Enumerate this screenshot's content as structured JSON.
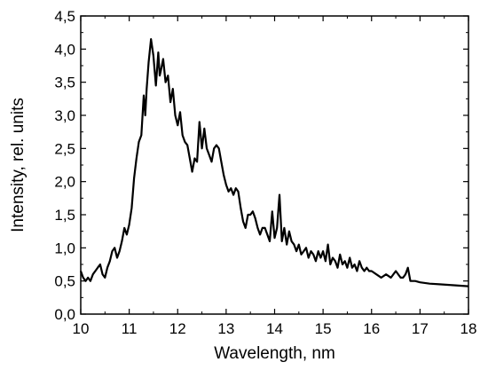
{
  "chart_data": {
    "type": "line",
    "title": "",
    "xlabel": "Wavelength, nm",
    "ylabel": "Intensity, rel. units",
    "xlim": [
      10,
      18
    ],
    "ylim": [
      0.0,
      4.5
    ],
    "x_ticks": [
      10,
      11,
      12,
      13,
      14,
      15,
      16,
      17,
      18
    ],
    "x_tick_labels": [
      "10",
      "11",
      "12",
      "13",
      "14",
      "15",
      "16",
      "17",
      "18"
    ],
    "y_ticks": [
      0.0,
      0.5,
      1.0,
      1.5,
      2.0,
      2.5,
      3.0,
      3.5,
      4.0,
      4.5
    ],
    "y_tick_labels": [
      "0,0",
      "0,5",
      "1,0",
      "1,5",
      "2,0",
      "2,5",
      "3,0",
      "3,5",
      "4,0",
      "4,5"
    ],
    "grid": false,
    "legend": "none",
    "line_color": "#000000",
    "series": [
      {
        "x": [
          10.0,
          10.05,
          10.1,
          10.15,
          10.2,
          10.25,
          10.3,
          10.35,
          10.4,
          10.45,
          10.5,
          10.55,
          10.6,
          10.65,
          10.7,
          10.75,
          10.8,
          10.85,
          10.9,
          10.95,
          11.0,
          11.05,
          11.1,
          11.15,
          11.2,
          11.25,
          11.3,
          11.33,
          11.36,
          11.4,
          11.45,
          11.5,
          11.55,
          11.6,
          11.63,
          11.66,
          11.7,
          11.75,
          11.8,
          11.85,
          11.9,
          11.95,
          12.0,
          12.05,
          12.1,
          12.15,
          12.2,
          12.25,
          12.3,
          12.35,
          12.4,
          12.45,
          12.5,
          12.55,
          12.6,
          12.65,
          12.7,
          12.75,
          12.8,
          12.85,
          12.9,
          12.95,
          13.0,
          13.05,
          13.1,
          13.15,
          13.2,
          13.25,
          13.3,
          13.35,
          13.4,
          13.45,
          13.5,
          13.55,
          13.6,
          13.65,
          13.7,
          13.75,
          13.8,
          13.85,
          13.9,
          13.95,
          14.0,
          14.05,
          14.1,
          14.15,
          14.2,
          14.25,
          14.3,
          14.35,
          14.4,
          14.45,
          14.5,
          14.55,
          14.6,
          14.65,
          14.7,
          14.75,
          14.8,
          14.85,
          14.9,
          14.95,
          15.0,
          15.05,
          15.1,
          15.15,
          15.2,
          15.25,
          15.3,
          15.35,
          15.4,
          15.45,
          15.5,
          15.55,
          15.6,
          15.65,
          15.7,
          15.75,
          15.8,
          15.85,
          15.9,
          15.95,
          16.0,
          16.1,
          16.2,
          16.3,
          16.4,
          16.5,
          16.6,
          16.65,
          16.7,
          16.75,
          16.8,
          16.9,
          17.0,
          17.2,
          17.4,
          17.6,
          17.8,
          18.0
        ],
        "y": [
          0.65,
          0.55,
          0.5,
          0.55,
          0.5,
          0.6,
          0.65,
          0.7,
          0.75,
          0.6,
          0.55,
          0.7,
          0.8,
          0.95,
          1.0,
          0.85,
          0.95,
          1.1,
          1.3,
          1.2,
          1.35,
          1.6,
          2.05,
          2.35,
          2.6,
          2.7,
          3.3,
          3.0,
          3.4,
          3.8,
          4.15,
          3.9,
          3.45,
          3.95,
          3.6,
          3.7,
          3.85,
          3.5,
          3.6,
          3.2,
          3.4,
          3.0,
          2.85,
          3.05,
          2.7,
          2.6,
          2.55,
          2.35,
          2.15,
          2.35,
          2.3,
          2.9,
          2.5,
          2.8,
          2.5,
          2.4,
          2.3,
          2.5,
          2.55,
          2.5,
          2.3,
          2.1,
          1.95,
          1.85,
          1.9,
          1.8,
          1.9,
          1.85,
          1.6,
          1.4,
          1.3,
          1.5,
          1.5,
          1.55,
          1.45,
          1.3,
          1.2,
          1.3,
          1.3,
          1.2,
          1.1,
          1.55,
          1.15,
          1.3,
          1.8,
          1.1,
          1.3,
          1.05,
          1.25,
          1.1,
          1.05,
          0.95,
          1.05,
          0.9,
          0.95,
          1.0,
          0.85,
          0.95,
          0.9,
          0.8,
          0.95,
          0.85,
          0.95,
          0.8,
          1.05,
          0.75,
          0.85,
          0.8,
          0.7,
          0.9,
          0.75,
          0.8,
          0.7,
          0.85,
          0.7,
          0.75,
          0.65,
          0.8,
          0.7,
          0.65,
          0.7,
          0.65,
          0.65,
          0.6,
          0.55,
          0.6,
          0.55,
          0.65,
          0.55,
          0.55,
          0.6,
          0.7,
          0.5,
          0.5,
          0.48,
          0.46,
          0.45,
          0.44,
          0.43,
          0.42
        ]
      }
    ]
  }
}
